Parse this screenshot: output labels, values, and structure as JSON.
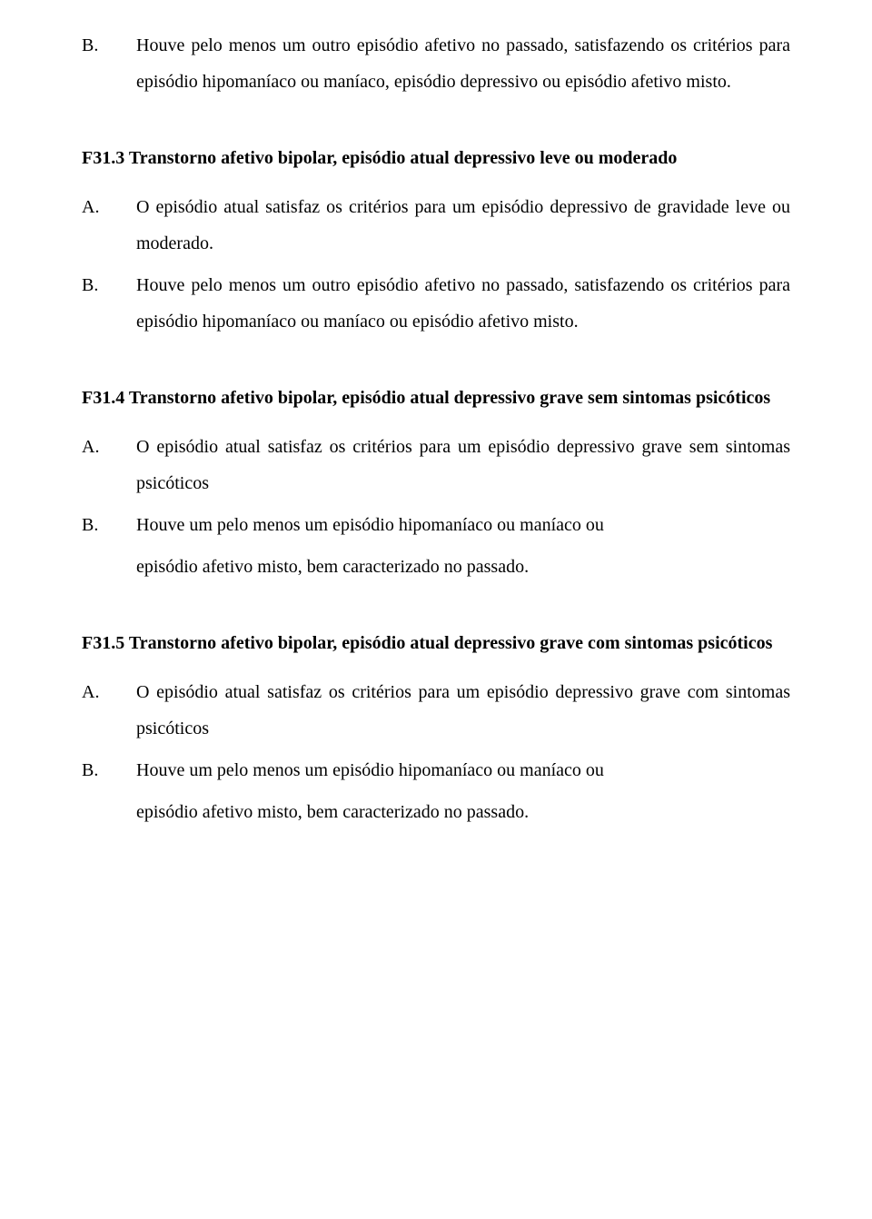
{
  "section0": {
    "items": [
      {
        "letter": "B.",
        "text": "Houve pelo menos um outro episódio afetivo no passado, satisfazendo os critérios para episódio hipomaníaco ou maníaco, episódio depressivo ou episódio afetivo misto."
      }
    ]
  },
  "section1": {
    "heading": "F31.3 Transtorno afetivo bipolar, episódio atual depressivo leve ou moderado",
    "items": [
      {
        "letter": "A.",
        "text": "O episódio atual satisfaz os critérios para um episódio depressivo de gravidade leve ou moderado."
      },
      {
        "letter": "B.",
        "text": "Houve pelo menos um outro episódio afetivo no passado, satisfazendo os critérios para episódio hipomaníaco ou maníaco ou episódio afetivo misto."
      }
    ]
  },
  "section2": {
    "heading": "F31.4 Transtorno afetivo bipolar, episódio atual depressivo grave sem sintomas psicóticos",
    "items": [
      {
        "letter": "A.",
        "text": "O episódio atual satisfaz os critérios para um episódio depressivo grave sem sintomas psicóticos"
      },
      {
        "letter": "B.",
        "text": "Houve um pelo menos um episódio hipomaníaco ou maníaco ou"
      }
    ],
    "tail": "episódio afetivo misto, bem caracterizado no passado."
  },
  "section3": {
    "heading": "F31.5 Transtorno afetivo bipolar, episódio atual depressivo grave com sintomas psicóticos",
    "items": [
      {
        "letter": "A.",
        "text": "O episódio atual satisfaz os critérios para um episódio depressivo grave com sintomas psicóticos"
      },
      {
        "letter": "B.",
        "text": "Houve um pelo menos um episódio hipomaníaco ou maníaco ou"
      }
    ],
    "tail": "episódio afetivo misto, bem caracterizado no passado."
  }
}
